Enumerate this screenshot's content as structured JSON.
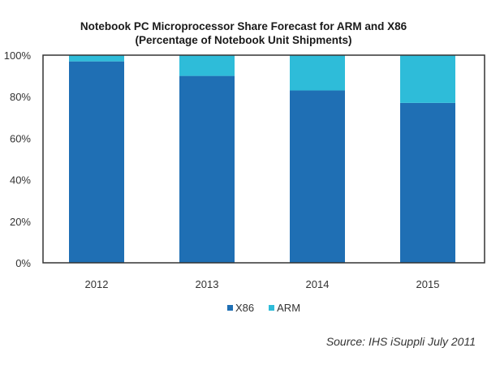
{
  "chart_data": {
    "type": "bar",
    "stacked": true,
    "title": "Notebook PC Microprocessor Share Forecast for ARM and X86",
    "subtitle": "(Percentage of Notebook Unit Shipments)",
    "xlabel": "",
    "ylabel": "",
    "categories": [
      "2012",
      "2013",
      "2014",
      "2015"
    ],
    "series": [
      {
        "name": "X86",
        "color": "#1F6FB4",
        "values": [
          97,
          90,
          83,
          77
        ]
      },
      {
        "name": "ARM",
        "color": "#2EBCD9",
        "values": [
          3,
          10,
          17,
          23
        ]
      }
    ],
    "ylim": [
      0,
      100
    ],
    "yticks": [
      "0%",
      "20%",
      "40%",
      "60%",
      "80%",
      "100%"
    ],
    "grid": false,
    "legend_position": "bottom",
    "source": "Source: IHS iSuppli July 2011"
  }
}
